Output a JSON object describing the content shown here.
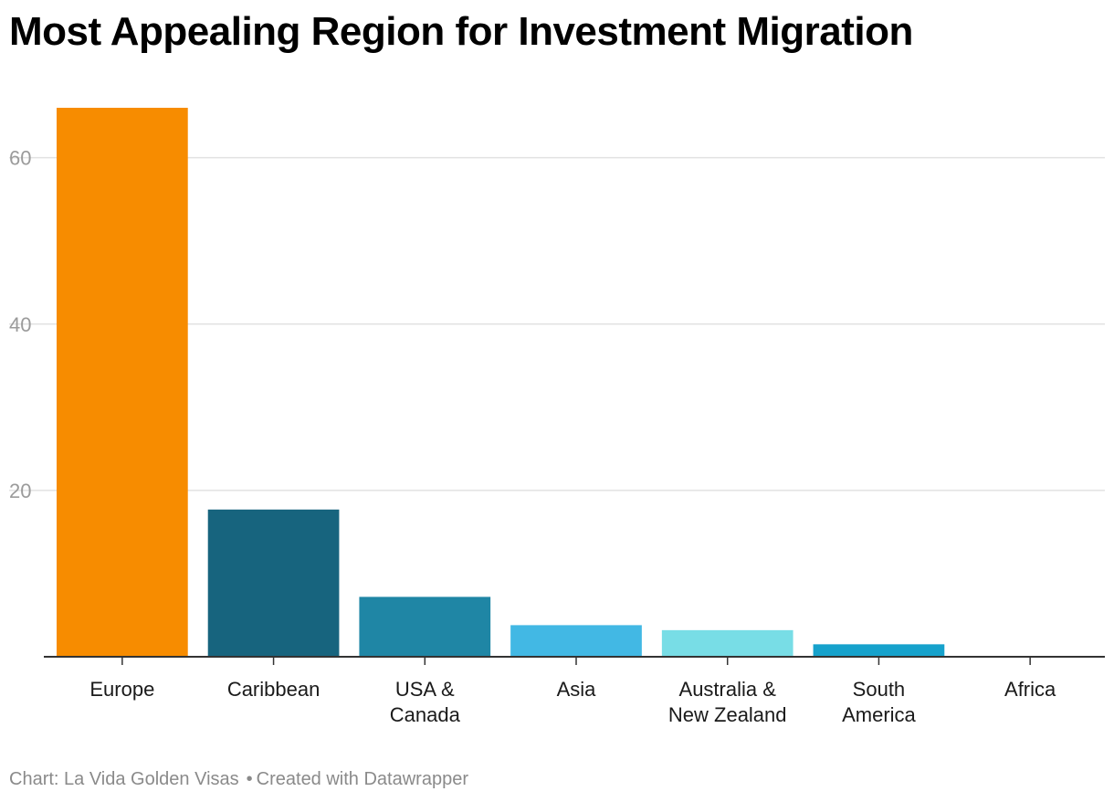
{
  "chart_data": {
    "type": "bar",
    "title": "Most Appealing Region for Investment Migration",
    "categories": [
      [
        "Europe"
      ],
      [
        "Caribbean"
      ],
      [
        "USA &",
        "Canada"
      ],
      [
        "Asia"
      ],
      [
        "Australia &",
        "New Zealand"
      ],
      [
        "South",
        "America"
      ],
      [
        "Africa"
      ]
    ],
    "values": [
      66,
      17.7,
      7.2,
      3.8,
      3.2,
      1.5,
      0
    ],
    "colors": [
      "#f78c00",
      "#17647e",
      "#1f86a5",
      "#42b8e4",
      "#78dde6",
      "#16a2cc",
      "#16a2cc"
    ],
    "xlabel": "",
    "ylabel": "",
    "ylim": [
      0,
      66
    ],
    "yticks": [
      20,
      40,
      60
    ],
    "grid": true
  },
  "footer": {
    "source": "Chart: La Vida Golden Visas",
    "separator": "•",
    "credit": "Created with Datawrapper"
  }
}
